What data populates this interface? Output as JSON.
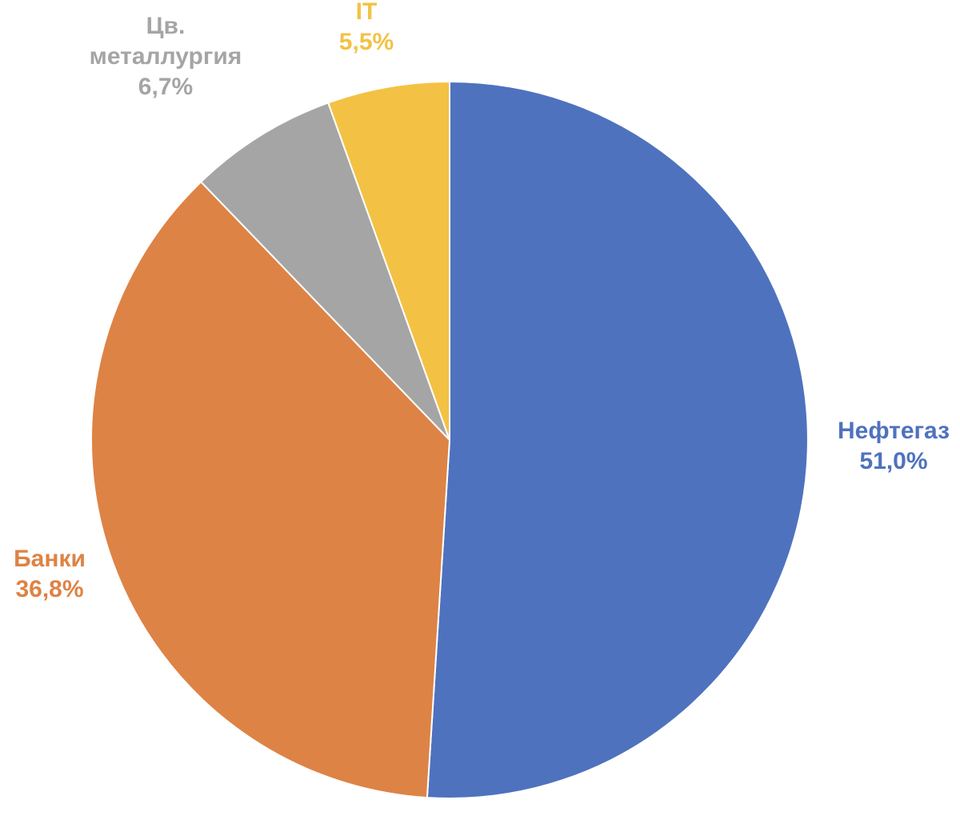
{
  "chart_data": {
    "type": "pie",
    "title": "",
    "legend": "none",
    "start_angle_deg": 0,
    "direction": "clockwise",
    "slices": [
      {
        "label_lines": [
          "Нефтегаз"
        ],
        "value": 51.0,
        "value_label": "51,0%",
        "color": "#4F72BE"
      },
      {
        "label_lines": [
          "Банки"
        ],
        "value": 36.8,
        "value_label": "36,8%",
        "color": "#DD8345"
      },
      {
        "label_lines": [
          "Цв.",
          "металлургия"
        ],
        "value": 6.7,
        "value_label": "6,7%",
        "color": "#A5A5A5"
      },
      {
        "label_lines": [
          "IT"
        ],
        "value": 5.5,
        "value_label": "5,5%",
        "color": "#F3C244"
      }
    ]
  }
}
